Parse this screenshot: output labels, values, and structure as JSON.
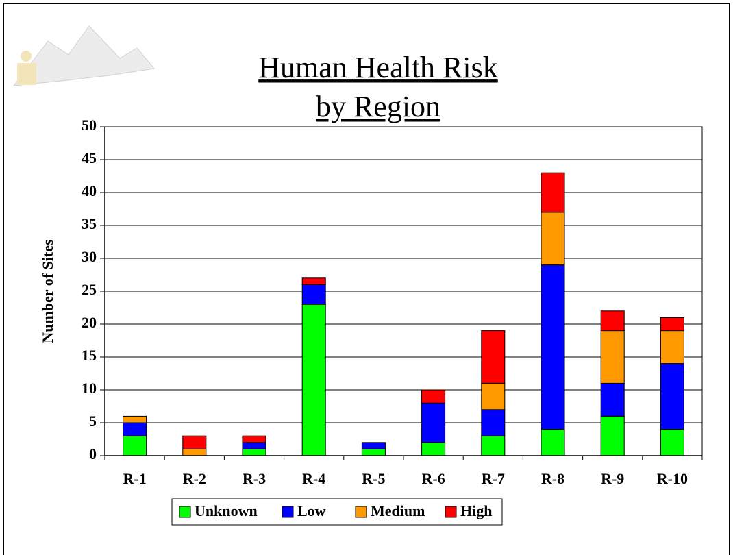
{
  "chart_data": {
    "type": "stacked_bar",
    "title_lines": [
      "Human Health Risk",
      "by Region"
    ],
    "y_label": "Number of Sites",
    "categories": [
      "R-1",
      "R-2",
      "R-3",
      "R-4",
      "R-5",
      "R-6",
      "R-7",
      "R-8",
      "R-9",
      "R-10"
    ],
    "series": [
      {
        "name": "Unknown",
        "color": "#00ff00",
        "values": [
          3,
          0,
          1,
          23,
          1,
          2,
          3,
          4,
          6,
          4
        ]
      },
      {
        "name": "Low",
        "color": "#0000ff",
        "values": [
          2,
          0,
          1,
          3,
          1,
          6,
          4,
          25,
          5,
          10
        ]
      },
      {
        "name": "Medium",
        "color": "#ff9900",
        "values": [
          1,
          1,
          0,
          0,
          0,
          0,
          4,
          8,
          8,
          5
        ]
      },
      {
        "name": "High",
        "color": "#ff0000",
        "values": [
          0,
          2,
          1,
          1,
          0,
          2,
          8,
          6,
          3,
          2
        ]
      }
    ],
    "ylim": [
      0,
      50
    ],
    "yticks": [
      0,
      5,
      10,
      15,
      20,
      25,
      30,
      35,
      40,
      45,
      50
    ],
    "grid": true,
    "legend": "bottom"
  }
}
